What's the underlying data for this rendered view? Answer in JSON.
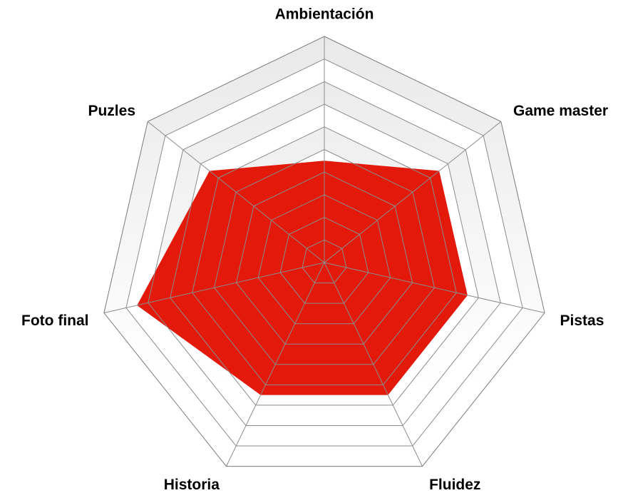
{
  "chart_data": {
    "type": "radar",
    "title": "",
    "axes": [
      "Ambientación",
      "Game master",
      "Pistas",
      "Fluidez",
      "Historia",
      "Foto final",
      "Puzles"
    ],
    "series": [
      {
        "values": [
          4.5,
          6.5,
          6.5,
          6.5,
          6.5,
          8.5,
          6.5
        ],
        "color": "#e2190b"
      }
    ],
    "range": [
      0,
      10
    ],
    "rings": 10,
    "grid": true,
    "legend": "none",
    "colors": {
      "fill": "#e2190b",
      "grid_line": "#8c8c8c",
      "band_dark": "#ececec",
      "band_light": "#ffffff"
    }
  }
}
